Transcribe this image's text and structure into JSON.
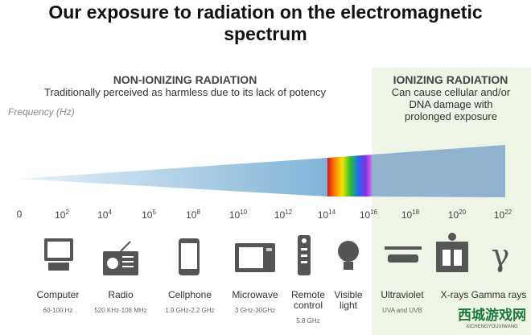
{
  "title": "Our exposure to radiation on the electromagnetic spectrum",
  "non_ionizing": {
    "heading": "NON-IONIZING RADIATION",
    "description": "Traditionally perceived as harmless due to its lack of potency"
  },
  "ionizing": {
    "heading": "IONIZING RADIATION",
    "description": "Can cause cellular and/or DNA damage with prolonged exposure"
  },
  "axis_label": "Frequency (Hz)",
  "ticks": [
    {
      "base": "0"
    },
    {
      "base": "10",
      "exp": "2"
    },
    {
      "base": "10",
      "exp": "4"
    },
    {
      "base": "10",
      "exp": "5"
    },
    {
      "base": "10",
      "exp": "8"
    },
    {
      "base": "10",
      "exp": "10"
    },
    {
      "base": "10",
      "exp": "12"
    },
    {
      "base": "10",
      "exp": "14"
    },
    {
      "base": "10",
      "exp": "16"
    },
    {
      "base": "10",
      "exp": "18"
    },
    {
      "base": "10",
      "exp": "20"
    },
    {
      "base": "10",
      "exp": "22"
    }
  ],
  "items": [
    {
      "label": "Computer",
      "range": "60-100 Hz"
    },
    {
      "label": "Radio",
      "range": "520 KHz-108 MHz"
    },
    {
      "label": "Cellphone",
      "range": "1.9 GHz-2.2 GHz"
    },
    {
      "label": "Microwave",
      "range": "3 GHz-30GHz"
    },
    {
      "label": "Remote control",
      "range": "5.8 GHz"
    },
    {
      "label": "Visible light"
    },
    {
      "label": "Ultraviolet",
      "range": "UVA and UVB"
    },
    {
      "label": "X-rays"
    },
    {
      "label": "Gamma rays"
    }
  ],
  "watermark": {
    "text": "西城游戏网",
    "subtext": "XICHENGYOUXIWANG"
  }
}
